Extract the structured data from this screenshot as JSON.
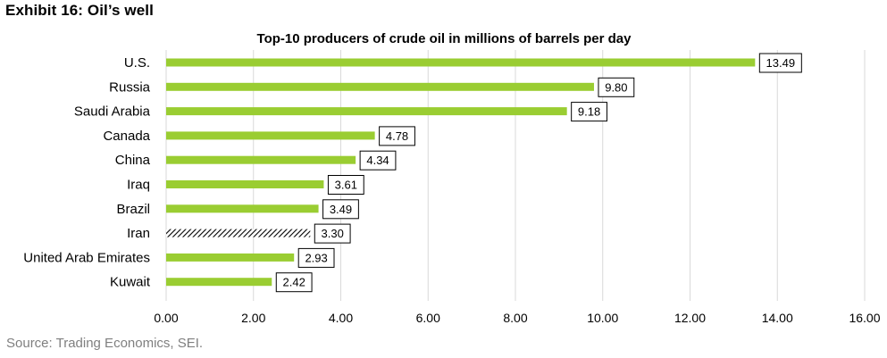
{
  "exhibit": {
    "title": "Exhibit 16: Oil’s well",
    "source": "Source: Trading Economics, SEI."
  },
  "colors": {
    "bar": "#9ACD32",
    "hatch_bar": "#000000",
    "grid": "#d9d9d9",
    "label_border": "#000000"
  },
  "chart_data": {
    "type": "bar",
    "orientation": "horizontal",
    "title": "Top-10 producers of crude oil in millions of barrels per day",
    "categories": [
      "U.S.",
      "Russia",
      "Saudi Arabia",
      "Canada",
      "China",
      "Iraq",
      "Brazil",
      "Iran",
      "United Arab Emirates",
      "Kuwait"
    ],
    "values": [
      13.49,
      9.8,
      9.18,
      4.78,
      4.34,
      3.61,
      3.49,
      3.3,
      2.93,
      2.42
    ],
    "value_labels": [
      "13.49",
      "9.80",
      "9.18",
      "4.78",
      "4.34",
      "3.61",
      "3.49",
      "3.30",
      "2.93",
      "2.42"
    ],
    "hatched_categories": [
      "Iran"
    ],
    "xlim": [
      0,
      16
    ],
    "xticks": [
      0,
      2,
      4,
      6,
      8,
      10,
      12,
      14,
      16
    ],
    "xtick_labels": [
      "0.00",
      "2.00",
      "4.00",
      "6.00",
      "8.00",
      "10.00",
      "12.00",
      "14.00",
      "16.00"
    ],
    "grid": "vertical",
    "legend": "none"
  }
}
